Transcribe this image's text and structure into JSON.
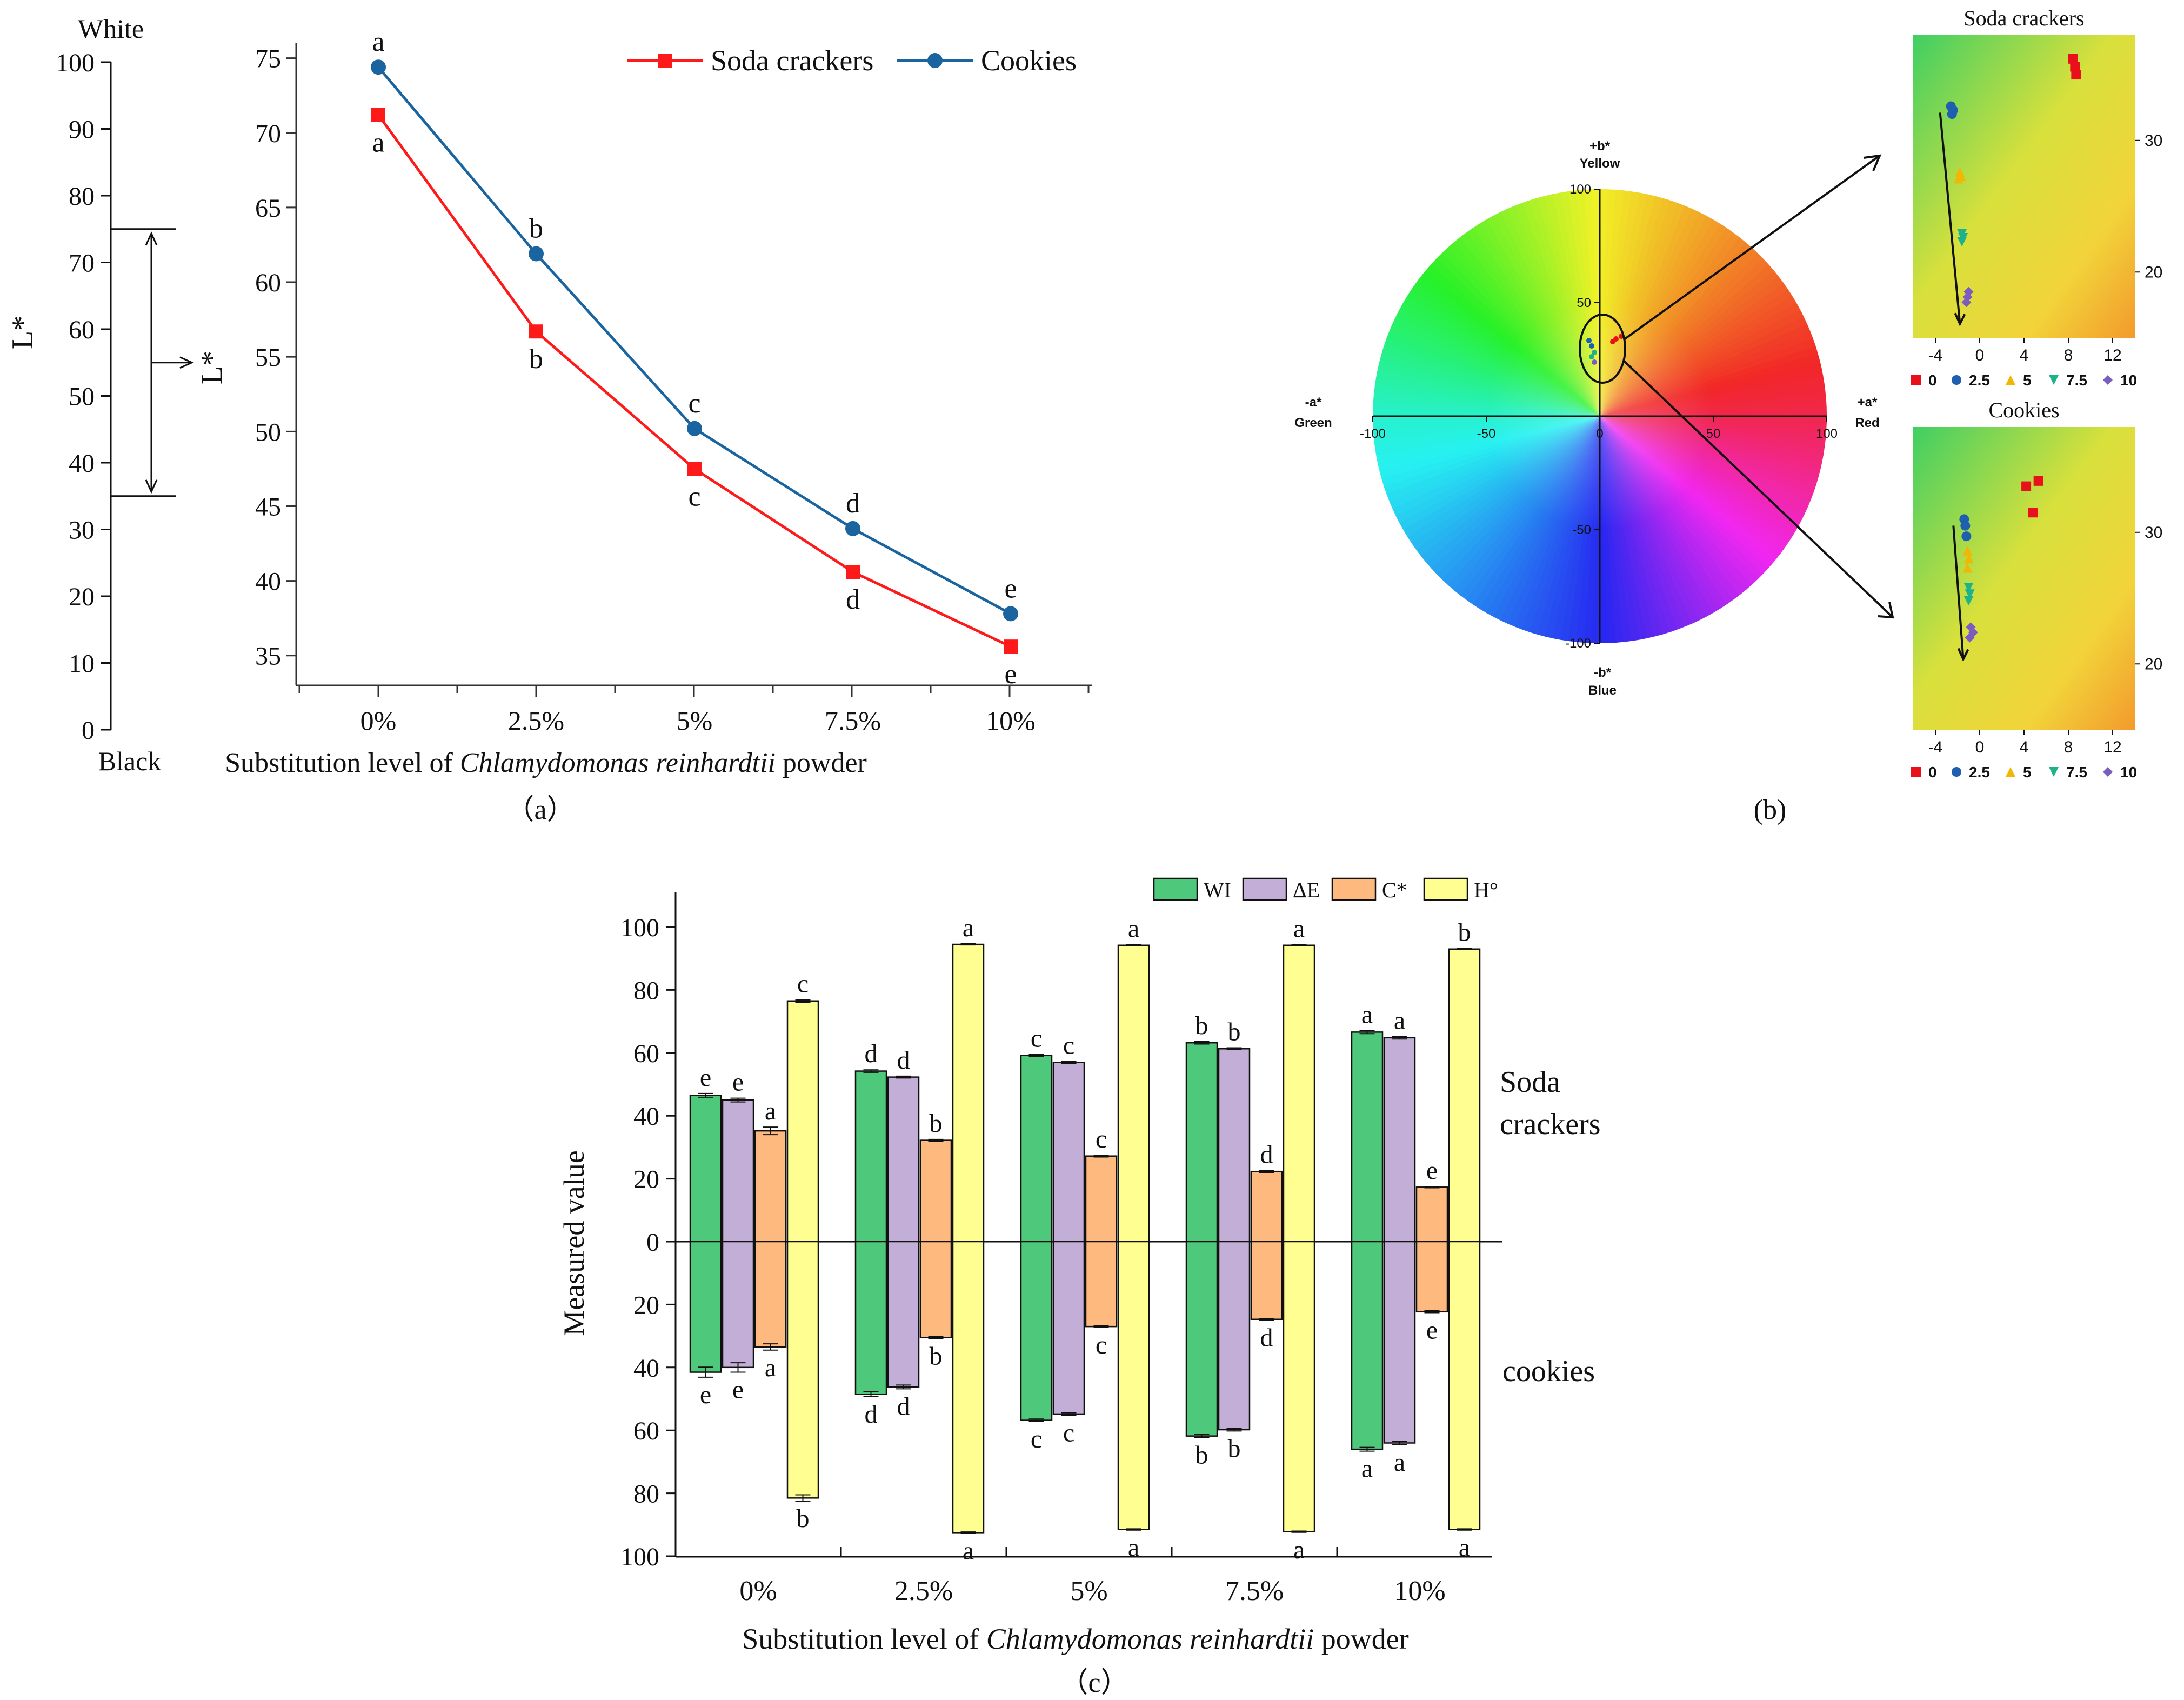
{
  "panel_a": {
    "scale": {
      "top_label": "White",
      "bottom_label": "Black",
      "axis_label": "L*",
      "ticks": [
        0,
        10,
        20,
        30,
        40,
        50,
        60,
        70,
        80,
        90,
        100
      ],
      "range_marker": [
        35,
        75
      ]
    },
    "caption": "（a）"
  },
  "panel_b": {
    "caption": "(b)",
    "wheel": {
      "labels": {
        "plus_b": "+b*",
        "yellow": "Yellow",
        "minus_b": "-b*",
        "blue": "Blue",
        "plus_a": "+a*",
        "red": "Red",
        "minus_a": "-a*",
        "green": "Green"
      },
      "ticks_x": [
        "-100",
        "-50",
        "0",
        "50",
        "100"
      ],
      "ticks_y": [
        "100",
        "50",
        "-50",
        "-100"
      ]
    },
    "insets": [
      {
        "title": "Soda crackers",
        "xticks": [
          "-4",
          "0",
          "4",
          "8",
          "12"
        ],
        "yticks": [
          "30",
          "20"
        ],
        "legend": [
          "0",
          "2.5",
          "5",
          "7.5",
          "10"
        ]
      },
      {
        "title": "Cookies",
        "xticks": [
          "-4",
          "0",
          "4",
          "8",
          "12"
        ],
        "yticks": [
          "30",
          "20"
        ],
        "legend": [
          "0",
          "2.5",
          "5",
          "7.5",
          "10"
        ]
      }
    ],
    "legend_colors": [
      "#e8101a",
      "#1e5fb0",
      "#f2b705",
      "#1db38a",
      "#7b5cc0"
    ]
  },
  "panel_c": {
    "caption": "（c）",
    "side_top": "Soda\ncrackers",
    "side_bottom": "cookies"
  },
  "chart_data": [
    {
      "type": "line",
      "xlabel_prefix": "Substitution level of ",
      "xlabel_italic": "Chlamydomonas reinhardtii",
      "xlabel_suffix": " powder",
      "ylabel": "L*",
      "categories": [
        "0%",
        "2.5%",
        "5%",
        "7.5%",
        "10%"
      ],
      "ylim": [
        33,
        76
      ],
      "yticks": [
        35,
        40,
        45,
        50,
        55,
        60,
        65,
        70,
        75
      ],
      "series": [
        {
          "name": "Soda crackers",
          "color": "#ff1a1a",
          "marker": "square",
          "values": [
            71.2,
            56.7,
            47.5,
            40.6,
            35.6
          ],
          "letters": [
            "a",
            "b",
            "c",
            "d",
            "e"
          ]
        },
        {
          "name": "Cookies",
          "color": "#1a64a0",
          "marker": "circle",
          "values": [
            74.4,
            61.9,
            50.2,
            43.5,
            37.8
          ],
          "letters": [
            "a",
            "b",
            "c",
            "d",
            "e"
          ]
        }
      ]
    },
    {
      "type": "scatter",
      "title": "Soda crackers",
      "xlim": [
        -6,
        14
      ],
      "ylim": [
        15,
        38
      ],
      "series": [
        {
          "name": "0",
          "color": "#e8101a",
          "points": [
            [
              8.4,
              36.2
            ],
            [
              8.6,
              35.6
            ],
            [
              8.7,
              35.0
            ]
          ]
        },
        {
          "name": "2.5",
          "color": "#1e5fb0",
          "points": [
            [
              -2.6,
              32.6
            ],
            [
              -2.4,
              32.3
            ],
            [
              -2.5,
              32.0
            ]
          ]
        },
        {
          "name": "5",
          "color": "#f2b705",
          "points": [
            [
              -1.8,
              27.6
            ],
            [
              -1.7,
              27.3
            ],
            [
              -1.9,
              27.1
            ]
          ]
        },
        {
          "name": "7.5",
          "color": "#1db38a",
          "points": [
            [
              -1.6,
              22.9
            ],
            [
              -1.5,
              22.6
            ],
            [
              -1.6,
              22.3
            ]
          ]
        },
        {
          "name": "10",
          "color": "#7b5cc0",
          "points": [
            [
              -1.0,
              18.5
            ],
            [
              -1.1,
              18.1
            ],
            [
              -1.2,
              17.7
            ]
          ]
        }
      ]
    },
    {
      "type": "scatter",
      "title": "Cookies",
      "xlim": [
        -6,
        14
      ],
      "ylim": [
        15,
        38
      ],
      "series": [
        {
          "name": "0",
          "color": "#e8101a",
          "points": [
            [
              4.2,
              33.5
            ],
            [
              5.3,
              33.9
            ],
            [
              4.8,
              31.5
            ]
          ]
        },
        {
          "name": "2.5",
          "color": "#1e5fb0",
          "points": [
            [
              -1.4,
              31.0
            ],
            [
              -1.3,
              30.5
            ],
            [
              -1.2,
              29.7
            ]
          ]
        },
        {
          "name": "5",
          "color": "#f2b705",
          "points": [
            [
              -1.1,
              28.6
            ],
            [
              -1.0,
              28.0
            ],
            [
              -1.1,
              27.3
            ]
          ]
        },
        {
          "name": "7.5",
          "color": "#1db38a",
          "points": [
            [
              -1.0,
              25.8
            ],
            [
              -0.9,
              25.3
            ],
            [
              -1.0,
              24.8
            ]
          ]
        },
        {
          "name": "10",
          "color": "#7b5cc0",
          "points": [
            [
              -0.8,
              22.8
            ],
            [
              -0.6,
              22.4
            ],
            [
              -0.9,
              22.0
            ]
          ]
        }
      ]
    },
    {
      "type": "bar",
      "xlabel_prefix": "Substitution level of ",
      "xlabel_italic": "Chlamydomonas reinhardtii",
      "xlabel_suffix": " powder",
      "ylabel": "Measured value",
      "categories": [
        "0%",
        "2.5%",
        "5%",
        "7.5%",
        "10%"
      ],
      "ylim": [
        -100,
        110
      ],
      "ytick_labels": [
        "100",
        "80",
        "60",
        "40",
        "20",
        "0",
        "20",
        "40",
        "60",
        "80",
        "100"
      ],
      "series": [
        {
          "name": "WI",
          "color": "#4ec97c",
          "top": [
            46.5,
            54.2,
            59.2,
            63.2,
            66.6
          ],
          "top_err": [
            0.6,
            0.4,
            0.3,
            0.4,
            0.5
          ],
          "top_letters": [
            "e",
            "d",
            "c",
            "b",
            "a"
          ],
          "bottom": [
            41.5,
            48.5,
            56.8,
            61.8,
            66.0
          ],
          "bottom_err": [
            1.6,
            0.8,
            0.4,
            0.5,
            0.6
          ],
          "bottom_letters": [
            "e",
            "d",
            "c",
            "b",
            "a"
          ]
        },
        {
          "name": "ΔE",
          "color": "#c2aed6",
          "top": [
            45.0,
            52.3,
            57.0,
            61.3,
            64.8
          ],
          "top_err": [
            0.6,
            0.3,
            0.3,
            0.3,
            0.4
          ],
          "top_letters": [
            "e",
            "d",
            "c",
            "b",
            "a"
          ],
          "bottom": [
            40.0,
            46.2,
            54.8,
            59.8,
            64.0
          ],
          "bottom_err": [
            1.5,
            0.6,
            0.4,
            0.4,
            0.6
          ],
          "bottom_letters": [
            "e",
            "d",
            "c",
            "b",
            "a"
          ]
        },
        {
          "name": "C*",
          "color": "#fdb97e",
          "top": [
            35.2,
            32.2,
            27.2,
            22.3,
            17.3
          ],
          "top_err": [
            1.2,
            0.3,
            0.3,
            0.3,
            0.2
          ],
          "top_letters": [
            "a",
            "b",
            "c",
            "d",
            "e"
          ],
          "bottom": [
            33.5,
            30.5,
            27.0,
            24.7,
            22.3
          ],
          "bottom_err": [
            1.0,
            0.3,
            0.3,
            0.3,
            0.3
          ],
          "bottom_letters": [
            "a",
            "b",
            "c",
            "d",
            "e"
          ]
        },
        {
          "name": "H°",
          "color": "#ffff91",
          "top": [
            76.5,
            94.5,
            94.2,
            94.2,
            93.0
          ],
          "top_err": [
            0.4,
            0.2,
            0.2,
            0.2,
            0.2
          ],
          "top_letters": [
            "c",
            "a",
            "a",
            "a",
            "b"
          ],
          "bottom": [
            81.5,
            92.5,
            91.5,
            92.2,
            91.5
          ],
          "bottom_err": [
            1.0,
            0.2,
            0.2,
            0.2,
            0.2
          ],
          "bottom_letters": [
            "b",
            "a",
            "a",
            "a",
            "a"
          ]
        }
      ]
    }
  ]
}
